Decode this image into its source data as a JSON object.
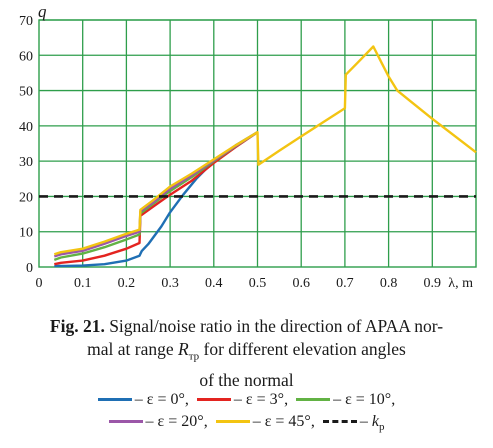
{
  "chart_data": {
    "type": "line",
    "xlabel": "λ, m",
    "ylabel": "q",
    "xlim": [
      0,
      1.0
    ],
    "ylim": [
      0,
      70
    ],
    "x_ticks": [
      "0",
      "0.1",
      "0.2",
      "0.3",
      "0.4",
      "0.5",
      "0.6",
      "0.7",
      "0.8",
      "0.9"
    ],
    "y_ticks": [
      "0",
      "10",
      "20",
      "30",
      "40",
      "50",
      "60",
      "70"
    ],
    "grid": true,
    "legend_position": "bottom",
    "series": [
      {
        "name": "ε = 0°",
        "color": "#1f6fb4",
        "points": [
          [
            0.035,
            0.3
          ],
          [
            0.06,
            0.3
          ],
          [
            0.1,
            0.4
          ],
          [
            0.15,
            0.8
          ],
          [
            0.2,
            1.8
          ],
          [
            0.23,
            3.2
          ],
          [
            0.235,
            4.5
          ],
          [
            0.25,
            6.5
          ],
          [
            0.28,
            11.5
          ],
          [
            0.3,
            15.5
          ],
          [
            0.33,
            20.5
          ],
          [
            0.36,
            25
          ],
          [
            0.4,
            30
          ],
          [
            0.45,
            34.5
          ],
          [
            0.5,
            38.2
          ]
        ]
      },
      {
        "name": "ε = 3°",
        "color": "#e32420",
        "points": [
          [
            0.035,
            0.8
          ],
          [
            0.05,
            1.2
          ],
          [
            0.1,
            1.8
          ],
          [
            0.15,
            3.2
          ],
          [
            0.2,
            5.2
          ],
          [
            0.23,
            6.8
          ],
          [
            0.232,
            14.5
          ],
          [
            0.26,
            17
          ],
          [
            0.3,
            20.5
          ],
          [
            0.35,
            24.5
          ],
          [
            0.4,
            29.5
          ],
          [
            0.45,
            34
          ],
          [
            0.5,
            38.2
          ]
        ]
      },
      {
        "name": "ε = 10°",
        "color": "#62b244",
        "points": [
          [
            0.035,
            2.0
          ],
          [
            0.05,
            2.7
          ],
          [
            0.1,
            3.8
          ],
          [
            0.15,
            5.6
          ],
          [
            0.2,
            7.8
          ],
          [
            0.23,
            9.2
          ],
          [
            0.232,
            15.2
          ],
          [
            0.26,
            17.8
          ],
          [
            0.3,
            21.5
          ],
          [
            0.35,
            25.5
          ],
          [
            0.4,
            30
          ],
          [
            0.45,
            34.2
          ],
          [
            0.5,
            38.2
          ]
        ]
      },
      {
        "name": "ε = 20°",
        "color": "#9b57a8",
        "points": [
          [
            0.035,
            3.0
          ],
          [
            0.05,
            3.6
          ],
          [
            0.1,
            4.6
          ],
          [
            0.15,
            6.6
          ],
          [
            0.2,
            8.8
          ],
          [
            0.23,
            10.0
          ],
          [
            0.232,
            15.8
          ],
          [
            0.26,
            18.2
          ],
          [
            0.3,
            22.2
          ],
          [
            0.35,
            26
          ],
          [
            0.4,
            30.2
          ],
          [
            0.45,
            34.3
          ],
          [
            0.5,
            38.2
          ]
        ]
      },
      {
        "name": "ε = 45°",
        "color": "#f3c412",
        "points": [
          [
            0.035,
            3.6
          ],
          [
            0.05,
            4.2
          ],
          [
            0.1,
            5.2
          ],
          [
            0.15,
            7.2
          ],
          [
            0.2,
            9.4
          ],
          [
            0.23,
            10.6
          ],
          [
            0.232,
            16.2
          ],
          [
            0.26,
            18.8
          ],
          [
            0.3,
            22.8
          ],
          [
            0.35,
            26.5
          ],
          [
            0.4,
            30.5
          ],
          [
            0.45,
            34.5
          ],
          [
            0.5,
            38.2
          ],
          [
            0.502,
            29
          ],
          [
            0.55,
            33
          ],
          [
            0.6,
            37
          ],
          [
            0.65,
            41
          ],
          [
            0.7,
            45
          ],
          [
            0.702,
            54.5
          ],
          [
            0.73,
            58
          ],
          [
            0.765,
            62.5
          ],
          [
            0.8,
            54
          ],
          [
            0.82,
            50
          ],
          [
            0.85,
            47
          ],
          [
            0.9,
            42
          ],
          [
            1.0,
            32.5
          ]
        ]
      },
      {
        "name": "k_p",
        "color": "#1a1a1a",
        "dashed": true,
        "points": [
          [
            0.0,
            20
          ],
          [
            1.0,
            20
          ]
        ]
      }
    ]
  },
  "caption": {
    "fig_label": "Fig. 21.",
    "line1": " Signal/noise ratio in the direction of APAA nor-",
    "line2_pre": "mal at range ",
    "line2_var": "R",
    "line2_sub": "тр",
    "line2_post": " for different elevation angles",
    "line3": "of the normal"
  },
  "legend": {
    "items": [
      {
        "label": "– ε = 0°,",
        "color": "#1f6fb4"
      },
      {
        "label": "– ε = 3°,",
        "color": "#e32420"
      },
      {
        "label": "– ε = 10°,",
        "color": "#62b244"
      },
      {
        "label": "– ε = 20°,",
        "color": "#9b57a8"
      },
      {
        "label": "– ε = 45°,",
        "color": "#f3c412"
      },
      {
        "label_pre": "– ",
        "label_var": "k",
        "label_sub": "р",
        "color": "#1a1a1a",
        "dashed": true
      }
    ]
  }
}
